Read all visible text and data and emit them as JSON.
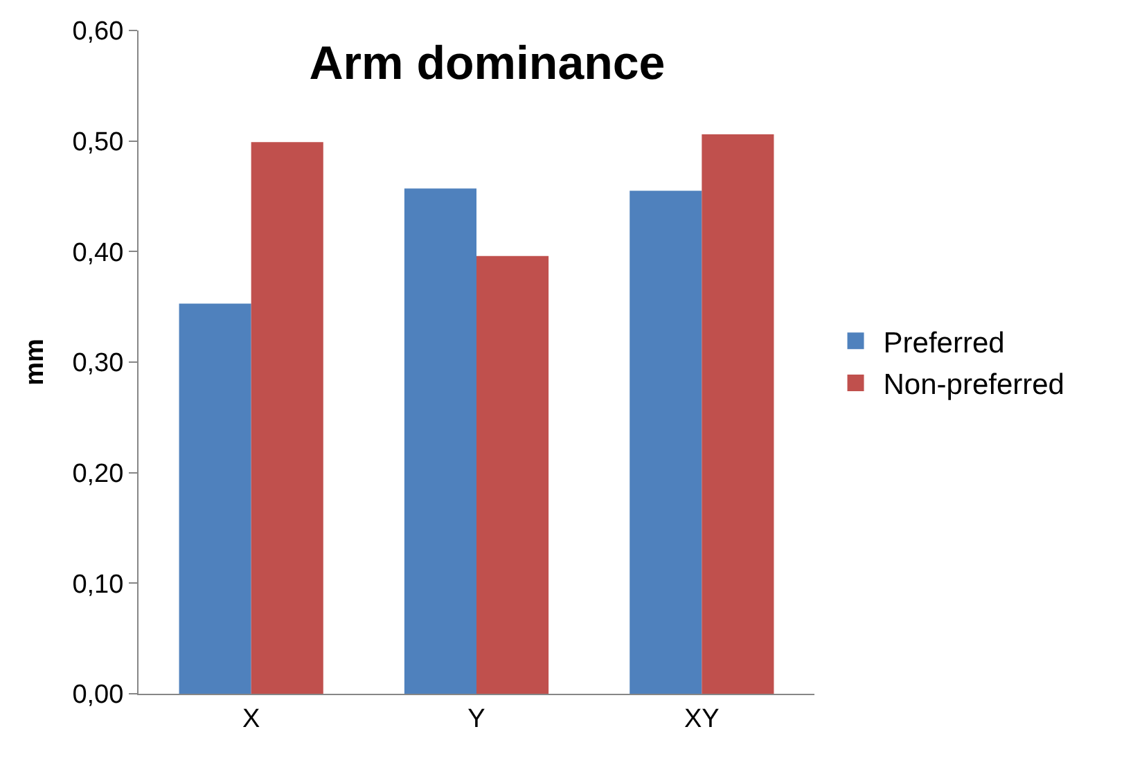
{
  "chart_data": {
    "type": "bar",
    "title": "Arm dominance",
    "ylabel": "mm",
    "categories": [
      "X",
      "Y",
      "XY"
    ],
    "series": [
      {
        "name": "Preferred",
        "color": "#4f81bd",
        "values": [
          0.353,
          0.457,
          0.455
        ]
      },
      {
        "name": "Non-preferred",
        "color": "#c0504d",
        "values": [
          0.499,
          0.396,
          0.506
        ]
      }
    ],
    "ylim": [
      0,
      0.6
    ],
    "yticks": [
      {
        "value": 0,
        "label": "0,00"
      },
      {
        "value": 0.1,
        "label": "0,10"
      },
      {
        "value": 0.2,
        "label": "0,20"
      },
      {
        "value": 0.3,
        "label": "0,30"
      },
      {
        "value": 0.4,
        "label": "0,40"
      },
      {
        "value": 0.5,
        "label": "0,50"
      },
      {
        "value": 0.6,
        "label": "0,60"
      }
    ],
    "legend": "right"
  }
}
